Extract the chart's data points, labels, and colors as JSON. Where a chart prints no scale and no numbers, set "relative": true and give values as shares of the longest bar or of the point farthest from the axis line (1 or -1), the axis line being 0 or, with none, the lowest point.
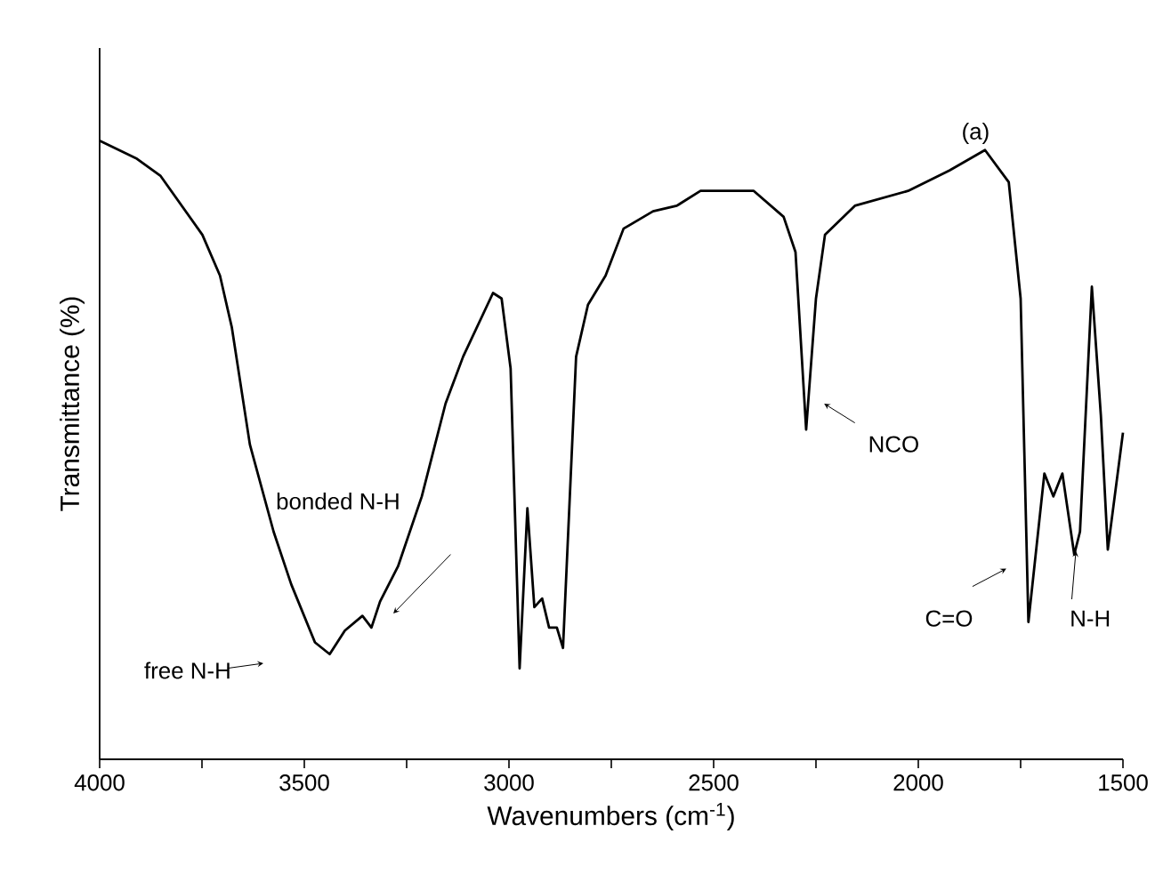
{
  "chart_data": {
    "type": "line",
    "relative": true,
    "xlabel": "Wavenumbers (cm$^{-1}$)",
    "ylabel": "Transmittance (%)",
    "xlim": [
      4000,
      1500
    ],
    "xticks": [
      4000,
      {
        "value": 3750,
        "label": null
      },
      3500,
      {
        "value": 3250,
        "label": null
      },
      3000,
      {
        "value": 2750,
        "label": null
      },
      2500,
      {
        "value": 2250,
        "label": null
      },
      2000,
      {
        "value": 1750,
        "label": null
      },
      1500
    ],
    "tick_labels": "x",
    "grid": false,
    "marker": "none",
    "line_style": "solid",
    "annotations": [
      "(a)",
      "free N-H",
      "bonded N-H",
      "NCO",
      "C=O",
      "N-H"
    ],
    "x": [
      4000,
      3909,
      3851,
      3749,
      3706,
      3677,
      3633,
      3575,
      3532,
      3474,
      3438,
      3401,
      3358,
      3336,
      3315,
      3271,
      3213,
      3155,
      3112,
      3039,
      3018,
      2996,
      2974,
      2955,
      2938,
      2919,
      2902,
      2883,
      2868,
      2836,
      2807,
      2764,
      2720,
      2648,
      2590,
      2532,
      2402,
      2329,
      2300,
      2274,
      2250,
      2228,
      2155,
      2025,
      1924,
      1837,
      1779,
      1750,
      1731,
      1692,
      1670,
      1648,
      1619,
      1605,
      1576,
      1554,
      1537,
      1500
    ],
    "series": [
      {
        "color": "#000000",
        "values": [
          1.0,
          0.971,
          0.943,
          0.848,
          0.782,
          0.698,
          0.509,
          0.368,
          0.283,
          0.189,
          0.17,
          0.208,
          0.232,
          0.213,
          0.255,
          0.312,
          0.425,
          0.575,
          0.651,
          0.754,
          0.745,
          0.632,
          0.147,
          0.406,
          0.246,
          0.26,
          0.213,
          0.213,
          0.18,
          0.651,
          0.735,
          0.782,
          0.858,
          0.886,
          0.895,
          0.919,
          0.919,
          0.877,
          0.82,
          0.533,
          0.745,
          0.848,
          0.895,
          0.919,
          0.952,
          0.985,
          0.933,
          0.745,
          0.222,
          0.462,
          0.425,
          0.462,
          0.331,
          0.368,
          0.764,
          0.556,
          0.339,
          0.528
        ]
      }
    ]
  }
}
